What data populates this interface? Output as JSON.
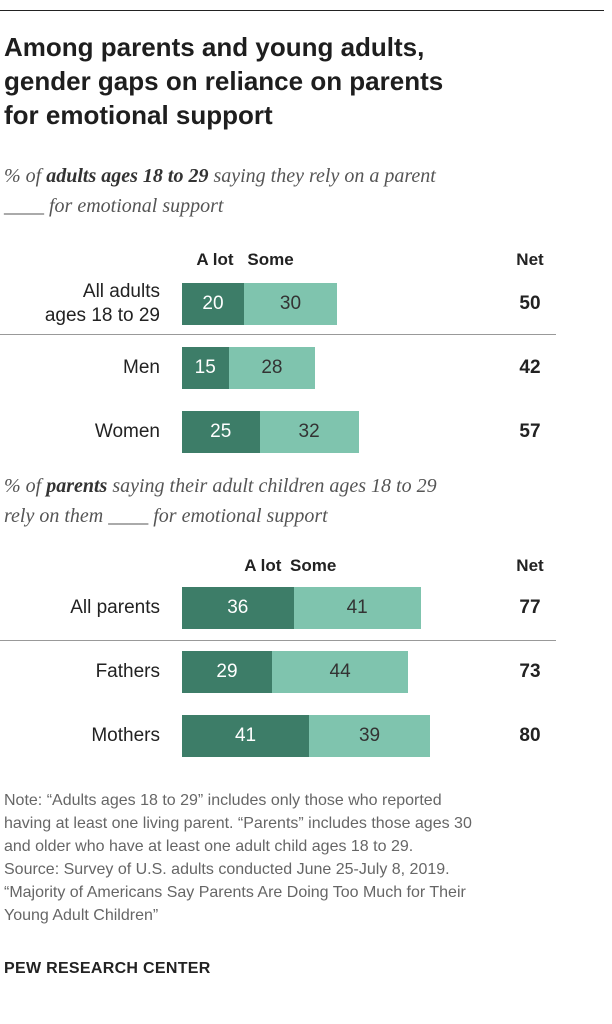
{
  "title_lines": [
    "Among parents and young adults,",
    "gender gaps on reliance on parents",
    "for emotional support"
  ],
  "chart_data": [
    {
      "type": "bar",
      "subtitle": {
        "pre": "% of ",
        "bold": "adults ages 18 to 29",
        "post": " saying they rely on a parent",
        "line2": "____ for emotional support"
      },
      "headers": {
        "a_lot": "A lot",
        "some": "Some",
        "net": "Net"
      },
      "categories": [
        [
          "All adults",
          "ages 18 to 29"
        ],
        [
          "Men"
        ],
        [
          "Women"
        ]
      ],
      "series": [
        {
          "name": "A lot",
          "values": [
            20,
            15,
            25
          ]
        },
        {
          "name": "Some",
          "values": [
            30,
            28,
            32
          ]
        }
      ],
      "net": [
        50,
        42,
        57
      ],
      "colors": {
        "a_lot": "#3d7d68",
        "some": "#7fc4ae"
      }
    },
    {
      "type": "bar",
      "subtitle": {
        "pre": "% of ",
        "bold": "parents",
        "post": " saying their adult children ages 18 to 29",
        "line2": "rely on them ____ for emotional support"
      },
      "headers": {
        "a_lot": "A lot",
        "some": "Some",
        "net": "Net"
      },
      "categories": [
        [
          "All parents"
        ],
        [
          "Fathers"
        ],
        [
          "Mothers"
        ]
      ],
      "series": [
        {
          "name": "A lot",
          "values": [
            36,
            29,
            41
          ]
        },
        {
          "name": "Some",
          "values": [
            41,
            44,
            39
          ]
        }
      ],
      "net": [
        77,
        73,
        80
      ],
      "colors": {
        "a_lot": "#3d7d68",
        "some": "#7fc4ae"
      }
    }
  ],
  "note_lines": [
    "Note: “Adults ages 18 to 29” includes only those who reported",
    "having at least one living parent. “Parents” includes those ages 30",
    "and older who have at least one adult child ages 18 to 29.",
    "Source: Survey of U.S. adults conducted June 25-July 8, 2019.",
    "“Majority of Americans Say Parents Are Doing Too Much for Their",
    "Young Adult Children”"
  ],
  "brand": "PEW RESEARCH CENTER"
}
